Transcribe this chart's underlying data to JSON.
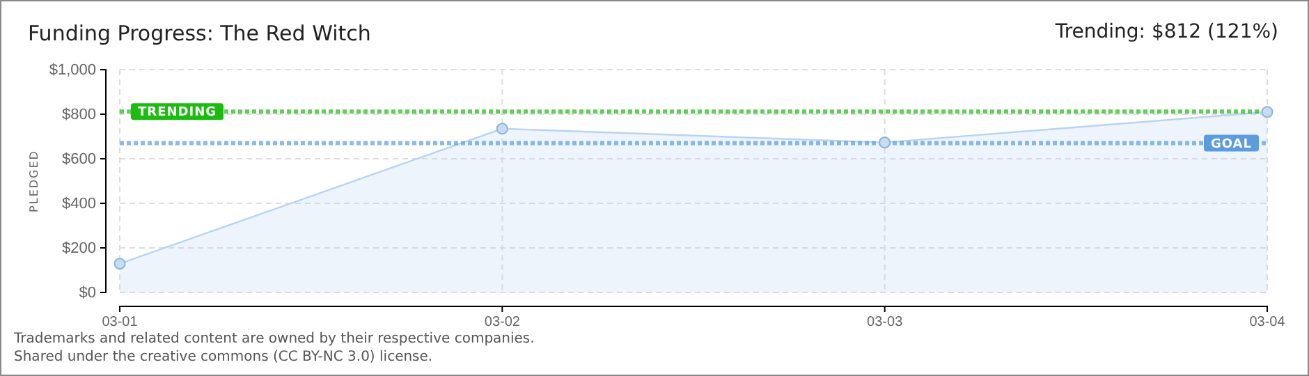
{
  "chart_data": {
    "type": "area",
    "title": "Funding Progress: The Red Witch",
    "subtitle": "Trending: $812 (121%)",
    "ylabel": "PLEDGED",
    "categories": [
      "03-01",
      "03-02",
      "03-03",
      "03-04"
    ],
    "series": [
      {
        "color": "#b8d4f2",
        "values": [
          129,
          735,
          673,
          810
        ]
      }
    ],
    "ylim": [
      0,
      1000
    ],
    "yticks": [
      {
        "value": 0,
        "label": "$0"
      },
      {
        "value": 200,
        "label": "$200"
      },
      {
        "value": 400,
        "label": "$400"
      },
      {
        "value": 600,
        "label": "$600"
      },
      {
        "value": 800,
        "label": "$800"
      },
      {
        "value": 1000,
        "label": "$1,000"
      }
    ],
    "grid": true,
    "marker": "circle",
    "ref_lines": [
      {
        "axis": "y",
        "value": 812,
        "label": "TRENDING",
        "color": "#1cbb10",
        "line_style": "dotted"
      },
      {
        "axis": "y",
        "value": 670,
        "label": "GOAL",
        "color": "#5b9bde",
        "line_style": "dotted"
      }
    ],
    "annotations": [
      "Trademarks and related content are owned by their respective companies.",
      "Shared under the creative commons (CC BY-NC 3.0) license."
    ]
  }
}
